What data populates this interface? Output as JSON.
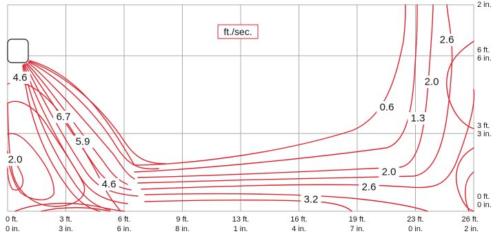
{
  "chart_data": {
    "type": "contour",
    "units_label": "ft./sec.",
    "x_ticks": [
      {
        "line1": "0 ft.",
        "line2": "0 in."
      },
      {
        "line1": "3 ft.",
        "line2": "3 in."
      },
      {
        "line1": "6 ft.",
        "line2": "6 in."
      },
      {
        "line1": "9 ft.",
        "line2": "8 in."
      },
      {
        "line1": "13 ft.",
        "line2": "1 in."
      },
      {
        "line1": "16 ft.",
        "line2": "4 in."
      },
      {
        "line1": "19 ft.",
        "line2": "7 in."
      },
      {
        "line1": "23 ft.",
        "line2": "0 in."
      },
      {
        "line1": "26 ft.",
        "line2": "2 in."
      }
    ],
    "y_ticks": [
      {
        "line1": "0 ft.",
        "line2": "0 in."
      },
      {
        "line1": "3 ft.",
        "line2": "3 in."
      },
      {
        "line1": "6 ft.",
        "line2": "6 in."
      },
      {
        "line1": "",
        "line2": "2 in."
      }
    ],
    "contour_labels": [
      "4.6",
      "6.7",
      "5.9",
      "4.6",
      "2.0",
      "0.6",
      "1.3",
      "2.0",
      "2.6",
      "2.0",
      "2.6",
      "3.2"
    ],
    "grid": true,
    "legend": "none"
  }
}
